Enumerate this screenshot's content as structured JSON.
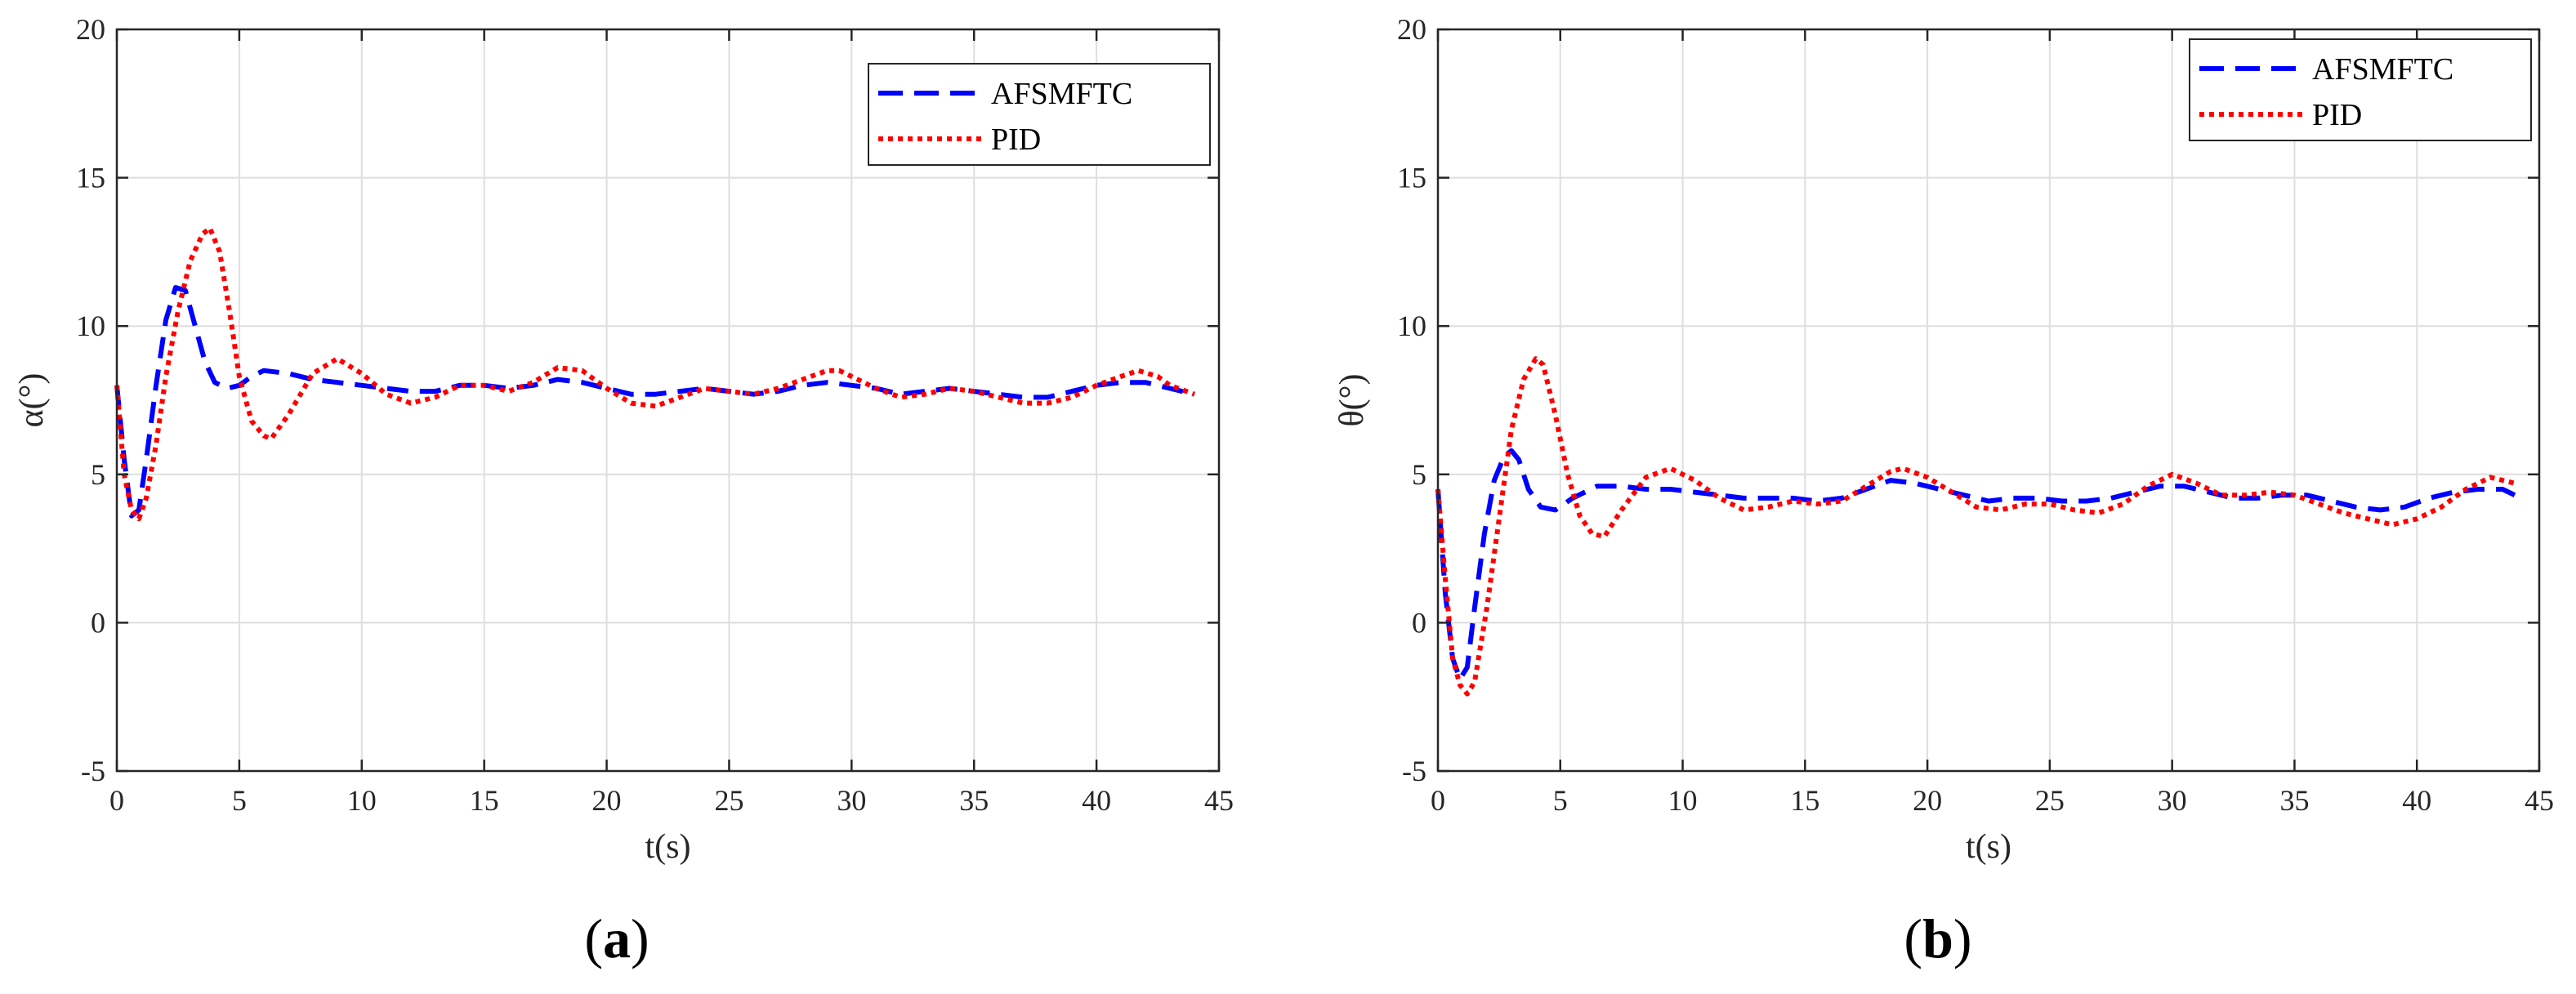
{
  "chart_data": [
    {
      "type": "line",
      "panel_label": "a",
      "xlabel": "t(s)",
      "ylabel": "α(°)",
      "xlim": [
        0,
        45
      ],
      "ylim": [
        -5,
        20
      ],
      "xticks": [
        "0",
        "5",
        "10",
        "15",
        "20",
        "25",
        "30",
        "35",
        "40",
        "45"
      ],
      "yticks": [
        "-5",
        "0",
        "5",
        "10",
        "15",
        "20"
      ],
      "grid": true,
      "legend_position": "top-right",
      "series": [
        {
          "name": "AFSMFTC",
          "color": "#0000ff",
          "style": "dashed",
          "x": [
            0,
            0.3,
            0.6,
            0.9,
            1.2,
            1.6,
            2.0,
            2.4,
            2.8,
            3.2,
            3.6,
            4.0,
            4.5,
            5.0,
            5.5,
            6.0,
            7.0,
            8.0,
            9.0,
            10.0,
            11.0,
            12.0,
            13.0,
            14.0,
            15.0,
            16.0,
            17.0,
            18.0,
            19.0,
            20.0,
            21.0,
            22.0,
            23.0,
            24.0,
            25.0,
            26.0,
            27.0,
            28.0,
            29.0,
            30.0,
            31.0,
            32.0,
            33.0,
            34.0,
            35.0,
            36.0,
            37.0,
            38.0,
            39.0,
            40.0,
            41.0,
            42.0,
            43.0,
            44.0
          ],
          "y": [
            8.0,
            5.5,
            3.6,
            3.8,
            5.5,
            8.0,
            10.2,
            11.3,
            11.2,
            10.0,
            8.8,
            8.1,
            7.9,
            8.0,
            8.3,
            8.5,
            8.4,
            8.2,
            8.1,
            8.0,
            7.9,
            7.8,
            7.8,
            8.0,
            8.0,
            7.9,
            8.0,
            8.2,
            8.1,
            7.9,
            7.7,
            7.7,
            7.8,
            7.9,
            7.8,
            7.7,
            7.8,
            8.0,
            8.1,
            8.0,
            7.9,
            7.7,
            7.8,
            7.9,
            7.8,
            7.7,
            7.6,
            7.6,
            7.8,
            8.0,
            8.1,
            8.1,
            7.9,
            7.7
          ]
        },
        {
          "name": "PID",
          "color": "#ff0000",
          "style": "dotted",
          "x": [
            0,
            0.3,
            0.6,
            0.9,
            1.2,
            1.6,
            2.0,
            2.5,
            3.0,
            3.5,
            3.8,
            4.2,
            4.6,
            5.0,
            5.5,
            6.0,
            6.3,
            7.0,
            8.0,
            9.0,
            10.0,
            11.0,
            12.0,
            13.0,
            14.0,
            15.0,
            16.0,
            17.0,
            18.0,
            19.0,
            20.0,
            21.0,
            22.0,
            23.0,
            24.0,
            25.0,
            26.0,
            27.0,
            28.0,
            29.0,
            29.5,
            30.0,
            31.0,
            32.0,
            33.0,
            34.0,
            35.0,
            36.0,
            37.0,
            38.0,
            39.0,
            40.0,
            41.0,
            41.7,
            42.5,
            43.0,
            44.0
          ],
          "y": [
            8.0,
            5.0,
            3.8,
            3.5,
            4.2,
            6.0,
            8.3,
            10.5,
            12.2,
            13.1,
            13.3,
            12.5,
            10.5,
            8.3,
            6.8,
            6.3,
            6.2,
            7.0,
            8.4,
            8.9,
            8.4,
            7.7,
            7.4,
            7.6,
            8.0,
            8.0,
            7.8,
            8.1,
            8.6,
            8.5,
            7.9,
            7.4,
            7.3,
            7.6,
            7.9,
            7.8,
            7.7,
            7.9,
            8.2,
            8.5,
            8.5,
            8.3,
            7.9,
            7.6,
            7.7,
            7.9,
            7.8,
            7.6,
            7.4,
            7.4,
            7.6,
            8.0,
            8.3,
            8.5,
            8.3,
            8.0,
            7.7
          ]
        }
      ]
    },
    {
      "type": "line",
      "panel_label": "b",
      "xlabel": "t(s)",
      "ylabel": "θ(°)",
      "xlim": [
        0,
        45
      ],
      "ylim": [
        -5,
        20
      ],
      "xticks": [
        "0",
        "5",
        "10",
        "15",
        "20",
        "25",
        "30",
        "35",
        "40",
        "45"
      ],
      "yticks": [
        "-5",
        "0",
        "5",
        "10",
        "15",
        "20"
      ],
      "grid": true,
      "legend_position": "top-right",
      "series": [
        {
          "name": "AFSMFTC",
          "color": "#0000ff",
          "style": "dashed",
          "x": [
            0,
            0.3,
            0.6,
            0.9,
            1.2,
            1.5,
            1.9,
            2.3,
            2.7,
            3.0,
            3.3,
            3.7,
            4.2,
            4.8,
            5.5,
            6.5,
            7.5,
            8.5,
            9.5,
            10.5,
            11.5,
            12.5,
            13.5,
            14.5,
            15.5,
            16.5,
            17.5,
            18.5,
            19.5,
            20.5,
            21.5,
            22.5,
            23.5,
            24.5,
            25.5,
            26.5,
            27.5,
            28.5,
            29.5,
            30.5,
            31.5,
            32.5,
            33.5,
            34.5,
            35.5,
            36.5,
            37.5,
            38.5,
            39.5,
            40.5,
            41.5,
            42.5,
            43.5,
            44.0
          ],
          "y": [
            4.5,
            1.0,
            -1.2,
            -1.9,
            -1.5,
            0.5,
            3.0,
            4.8,
            5.6,
            5.8,
            5.5,
            4.5,
            3.9,
            3.8,
            4.2,
            4.6,
            4.6,
            4.5,
            4.5,
            4.4,
            4.3,
            4.2,
            4.2,
            4.2,
            4.1,
            4.2,
            4.5,
            4.8,
            4.7,
            4.5,
            4.3,
            4.1,
            4.2,
            4.2,
            4.1,
            4.1,
            4.2,
            4.4,
            4.6,
            4.6,
            4.4,
            4.2,
            4.2,
            4.3,
            4.3,
            4.1,
            3.9,
            3.8,
            3.9,
            4.2,
            4.4,
            4.5,
            4.5,
            4.3
          ]
        },
        {
          "name": "PID",
          "color": "#ff0000",
          "style": "dotted",
          "x": [
            0,
            0.3,
            0.6,
            0.9,
            1.2,
            1.5,
            2.0,
            2.5,
            3.0,
            3.5,
            4.0,
            4.3,
            4.8,
            5.3,
            5.8,
            6.3,
            6.8,
            7.5,
            8.5,
            9.5,
            10.5,
            11.5,
            12.5,
            13.5,
            14.5,
            15.5,
            16.5,
            17.5,
            18.5,
            19.0,
            20.0,
            21.0,
            22.0,
            23.0,
            24.0,
            25.0,
            26.0,
            27.0,
            28.0,
            29.0,
            30.0,
            31.0,
            32.0,
            33.0,
            34.0,
            35.0,
            36.0,
            37.0,
            38.0,
            39.0,
            40.0,
            41.0,
            42.0,
            43.0,
            44.0
          ],
          "y": [
            4.5,
            1.5,
            -1.2,
            -2.1,
            -2.4,
            -2.0,
            0.5,
            3.5,
            6.5,
            8.2,
            8.9,
            8.7,
            7.0,
            5.0,
            3.6,
            3.0,
            2.9,
            3.8,
            4.9,
            5.2,
            4.8,
            4.2,
            3.8,
            3.9,
            4.1,
            4.0,
            4.1,
            4.6,
            5.1,
            5.2,
            4.9,
            4.4,
            3.9,
            3.8,
            4.0,
            4.0,
            3.8,
            3.7,
            4.0,
            4.6,
            5.0,
            4.7,
            4.3,
            4.3,
            4.4,
            4.3,
            4.0,
            3.7,
            3.5,
            3.3,
            3.5,
            3.9,
            4.5,
            4.9,
            4.7
          ]
        }
      ]
    }
  ],
  "captions": [
    {
      "open": "(",
      "label": "a",
      "close": ")"
    },
    {
      "open": "(",
      "label": "b",
      "close": ")"
    }
  ]
}
